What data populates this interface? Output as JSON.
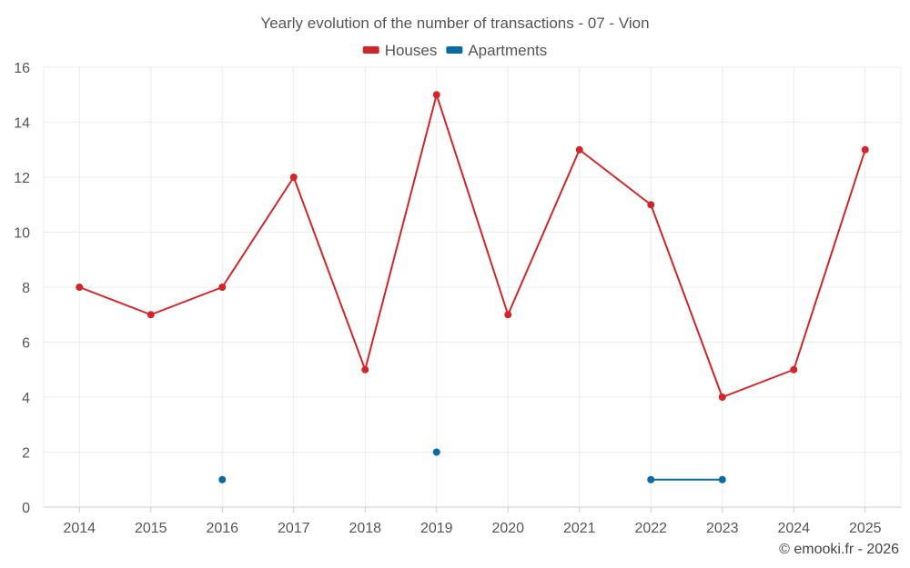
{
  "chart_data": {
    "type": "line",
    "title": "Yearly evolution of the number of transactions - 07 - Vion",
    "xlabel": "",
    "ylabel": "",
    "categories": [
      "2014",
      "2015",
      "2016",
      "2017",
      "2018",
      "2019",
      "2020",
      "2021",
      "2022",
      "2023",
      "2024",
      "2025"
    ],
    "ylim": [
      0,
      16
    ],
    "yticks": [
      0,
      2,
      4,
      6,
      8,
      10,
      12,
      14,
      16
    ],
    "grid": true,
    "legend_position": "top-center",
    "series": [
      {
        "name": "Houses",
        "color": "#d0262a",
        "values": [
          8,
          7,
          8,
          12,
          5,
          15,
          7,
          13,
          11,
          4,
          5,
          13
        ]
      },
      {
        "name": "Apartments",
        "color": "#0b6aa2",
        "values": [
          null,
          null,
          1,
          null,
          null,
          2,
          null,
          null,
          1,
          1,
          null,
          null
        ]
      }
    ]
  },
  "credit": "© emooki.fr - 2026"
}
